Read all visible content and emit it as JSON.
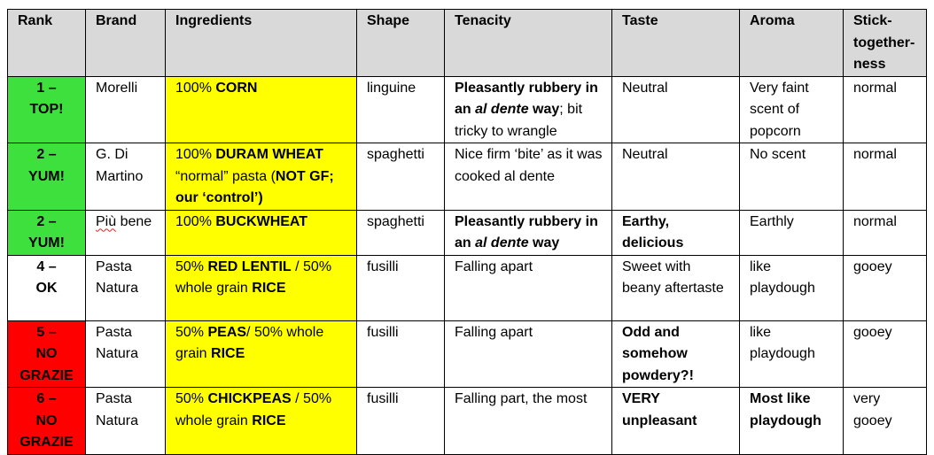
{
  "colors": {
    "header_bg": "#d9d9d9",
    "rank_top": "#3ee03e",
    "rank_bottom": "#ff0000",
    "ingredients_bg": "#ffff00",
    "spellcheck_underline": "#e02020"
  },
  "headers": {
    "rank": "Rank",
    "brand": "Brand",
    "ingredients": "Ingredients",
    "shape": "Shape",
    "tenacity": "Tenacity",
    "taste": "Taste",
    "aroma": "Aroma",
    "stick_a": "Stick-",
    "stick_b": "together-",
    "stick_c": "ness"
  },
  "rows": [
    {
      "rank_num": "1 –",
      "rank_word": "TOP!",
      "brand": "Morelli",
      "ing_a": "100% ",
      "ing_b": "CORN",
      "shape": "linguine",
      "ten_a": "Pleasantly rubbery in an ",
      "ten_b": "al dente",
      "ten_c": " way",
      "ten_d": "; bit tricky to wrangle",
      "taste": "Neutral",
      "aroma": "Very faint scent of popcorn",
      "stick": "normal"
    },
    {
      "rank_num": "2 –",
      "rank_word": "YUM!",
      "brand": "G. Di Martino",
      "ing_a": "100% ",
      "ing_b": "DURAM WHEAT",
      "ing_c": " “normal” pasta (",
      "ing_d": "NOT GF; our ‘control’)",
      "shape": "spaghetti",
      "tenacity": "Nice firm ‘bite’ as it was cooked al dente",
      "taste": "Neutral",
      "aroma": "No scent",
      "stick": "normal"
    },
    {
      "rank_num": "2 –",
      "rank_word": "YUM!",
      "brand_a": "Più",
      "brand_b": " bene",
      "ing_a": "100% ",
      "ing_b": "BUCKWHEAT",
      "shape": "spaghetti",
      "ten_a": "Pleasantly rubbery in an ",
      "ten_b": "al dente",
      "ten_c": " way",
      "taste": "Earthy, delicious",
      "aroma": "Earthly",
      "stick": "normal"
    },
    {
      "rank_num": "4 –",
      "rank_word": "OK",
      "brand": "Pasta Natura",
      "ing_a": "50% ",
      "ing_b": "RED LENTIL",
      "ing_c": " / 50% whole grain ",
      "ing_d": "RICE",
      "shape": "fusilli",
      "tenacity": "Falling apart",
      "taste": "Sweet with beany aftertaste",
      "aroma": "like playdough",
      "stick": "gooey"
    },
    {
      "rank_num": "5 –",
      "rank_word": "NO GRAZIE",
      "brand": "Pasta Natura",
      "ing_a": "50% ",
      "ing_b": "PEAS",
      "ing_c": "/ 50% whole grain ",
      "ing_d": "RICE",
      "shape": "fusilli",
      "tenacity": "Falling apart",
      "taste": "Odd and somehow powdery?!",
      "aroma": "like playdough",
      "stick": "gooey"
    },
    {
      "rank_num": "6 –",
      "rank_word": "NO GRAZIE",
      "brand": "Pasta Natura",
      "ing_a": "50% ",
      "ing_b": "CHICKPEAS",
      "ing_c": " / 50% whole grain ",
      "ing_d": "RICE",
      "shape": "fusilli",
      "tenacity": "Falling part, the most",
      "taste": "VERY unpleasant",
      "aroma": "Most like playdough",
      "stick": "very gooey"
    }
  ]
}
